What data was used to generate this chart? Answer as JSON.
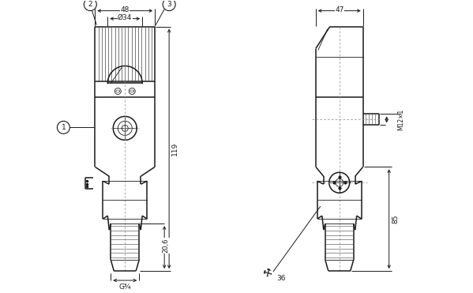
{
  "bg_color": "#ffffff",
  "line_color": "#1a1a1a",
  "dim_color": "#1a1a1a",
  "figsize": [
    5.99,
    3.71
  ],
  "dpi": 100,
  "labels": {
    "dim_48": "48",
    "dim_34": "Ø34",
    "dim_119": "119",
    "dim_206": "20,6",
    "dim_G34": "G¾",
    "dim_47": "47",
    "dim_85": "85",
    "dim_M12x1": "M12×1",
    "dim_36": "36",
    "num_1": "1",
    "num_2": "2",
    "num_3": "3"
  }
}
